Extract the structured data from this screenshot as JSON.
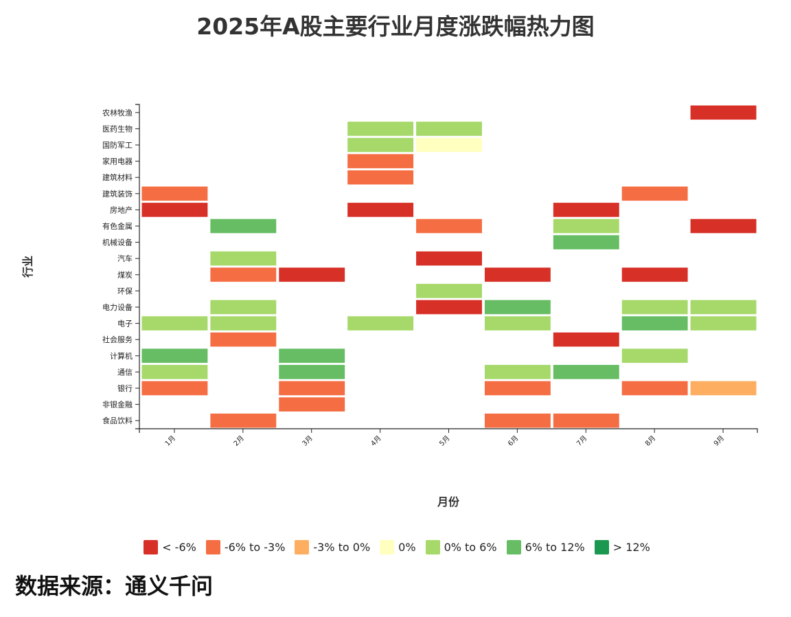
{
  "title": "2025年A股主要行业月度涨跌幅热力图",
  "source": "数据来源：通义千问",
  "chart_data": {
    "type": "heatmap",
    "title": "2025年A股主要行业月度涨跌幅热力图",
    "xlabel": "月份",
    "ylabel": "行业",
    "x_categories": [
      "1月",
      "2月",
      "3月",
      "4月",
      "5月",
      "6月",
      "7月",
      "8月",
      "9月"
    ],
    "y_categories": [
      "农林牧渔",
      "医药生物",
      "国防军工",
      "家用电器",
      "建筑材料",
      "建筑装饰",
      "房地产",
      "有色金属",
      "机械设备",
      "汽车",
      "煤炭",
      "环保",
      "电力设备",
      "电子",
      "社会服务",
      "计算机",
      "通信",
      "银行",
      "非银金融",
      "食品饮料"
    ],
    "legend_position": "bottom",
    "bins": [
      {
        "label": "< -6%",
        "color": "#d73027"
      },
      {
        "label": "-6% to -3%",
        "color": "#f46d43"
      },
      {
        "label": "-3% to 0%",
        "color": "#fdae61"
      },
      {
        "label": "0%",
        "color": "#ffffbf"
      },
      {
        "label": "0% to 6%",
        "color": "#a6d96a"
      },
      {
        "label": "6% to 12%",
        "color": "#66bd63"
      },
      {
        "label": "> 12%",
        "color": "#1a9850"
      }
    ],
    "cells": [
      {
        "industry": "农林牧渔",
        "month": "9月",
        "bin": "< -6%"
      },
      {
        "industry": "医药生物",
        "month": "4月",
        "bin": "0% to 6%"
      },
      {
        "industry": "医药生物",
        "month": "5月",
        "bin": "0% to 6%"
      },
      {
        "industry": "国防军工",
        "month": "4月",
        "bin": "0% to 6%"
      },
      {
        "industry": "国防军工",
        "month": "5月",
        "bin": "0%"
      },
      {
        "industry": "家用电器",
        "month": "4月",
        "bin": "-6% to -3%"
      },
      {
        "industry": "建筑材料",
        "month": "4月",
        "bin": "-6% to -3%"
      },
      {
        "industry": "建筑装饰",
        "month": "1月",
        "bin": "-6% to -3%"
      },
      {
        "industry": "建筑装饰",
        "month": "8月",
        "bin": "-6% to -3%"
      },
      {
        "industry": "房地产",
        "month": "1月",
        "bin": "< -6%"
      },
      {
        "industry": "房地产",
        "month": "4月",
        "bin": "< -6%"
      },
      {
        "industry": "房地产",
        "month": "7月",
        "bin": "< -6%"
      },
      {
        "industry": "有色金属",
        "month": "2月",
        "bin": "6% to 12%"
      },
      {
        "industry": "有色金属",
        "month": "5月",
        "bin": "-6% to -3%"
      },
      {
        "industry": "有色金属",
        "month": "7月",
        "bin": "0% to 6%"
      },
      {
        "industry": "有色金属",
        "month": "9月",
        "bin": "< -6%"
      },
      {
        "industry": "机械设备",
        "month": "7月",
        "bin": "6% to 12%"
      },
      {
        "industry": "汽车",
        "month": "2月",
        "bin": "0% to 6%"
      },
      {
        "industry": "汽车",
        "month": "5月",
        "bin": "< -6%"
      },
      {
        "industry": "煤炭",
        "month": "2月",
        "bin": "-6% to -3%"
      },
      {
        "industry": "煤炭",
        "month": "3月",
        "bin": "< -6%"
      },
      {
        "industry": "煤炭",
        "month": "6月",
        "bin": "< -6%"
      },
      {
        "industry": "煤炭",
        "month": "8月",
        "bin": "< -6%"
      },
      {
        "industry": "环保",
        "month": "5月",
        "bin": "0% to 6%"
      },
      {
        "industry": "电力设备",
        "month": "2月",
        "bin": "0% to 6%"
      },
      {
        "industry": "电力设备",
        "month": "5月",
        "bin": "< -6%"
      },
      {
        "industry": "电力设备",
        "month": "6月",
        "bin": "6% to 12%"
      },
      {
        "industry": "电力设备",
        "month": "8月",
        "bin": "0% to 6%"
      },
      {
        "industry": "电力设备",
        "month": "9月",
        "bin": "0% to 6%"
      },
      {
        "industry": "电子",
        "month": "1月",
        "bin": "0% to 6%"
      },
      {
        "industry": "电子",
        "month": "2月",
        "bin": "0% to 6%"
      },
      {
        "industry": "电子",
        "month": "4月",
        "bin": "0% to 6%"
      },
      {
        "industry": "电子",
        "month": "6月",
        "bin": "0% to 6%"
      },
      {
        "industry": "电子",
        "month": "8月",
        "bin": "6% to 12%"
      },
      {
        "industry": "电子",
        "month": "9月",
        "bin": "0% to 6%"
      },
      {
        "industry": "社会服务",
        "month": "2月",
        "bin": "-6% to -3%"
      },
      {
        "industry": "社会服务",
        "month": "7月",
        "bin": "< -6%"
      },
      {
        "industry": "计算机",
        "month": "1月",
        "bin": "6% to 12%"
      },
      {
        "industry": "计算机",
        "month": "3月",
        "bin": "6% to 12%"
      },
      {
        "industry": "计算机",
        "month": "8月",
        "bin": "0% to 6%"
      },
      {
        "industry": "通信",
        "month": "1月",
        "bin": "0% to 6%"
      },
      {
        "industry": "通信",
        "month": "3月",
        "bin": "6% to 12%"
      },
      {
        "industry": "通信",
        "month": "6月",
        "bin": "0% to 6%"
      },
      {
        "industry": "通信",
        "month": "7月",
        "bin": "6% to 12%"
      },
      {
        "industry": "银行",
        "month": "1月",
        "bin": "-6% to -3%"
      },
      {
        "industry": "银行",
        "month": "3月",
        "bin": "-6% to -3%"
      },
      {
        "industry": "银行",
        "month": "6月",
        "bin": "-6% to -3%"
      },
      {
        "industry": "银行",
        "month": "8月",
        "bin": "-6% to -3%"
      },
      {
        "industry": "银行",
        "month": "9月",
        "bin": "-3% to 0%"
      },
      {
        "industry": "非银金融",
        "month": "3月",
        "bin": "-6% to -3%"
      },
      {
        "industry": "食品饮料",
        "month": "2月",
        "bin": "-6% to -3%"
      },
      {
        "industry": "食品饮料",
        "month": "6月",
        "bin": "-6% to -3%"
      },
      {
        "industry": "食品饮料",
        "month": "7月",
        "bin": "-6% to -3%"
      }
    ]
  }
}
